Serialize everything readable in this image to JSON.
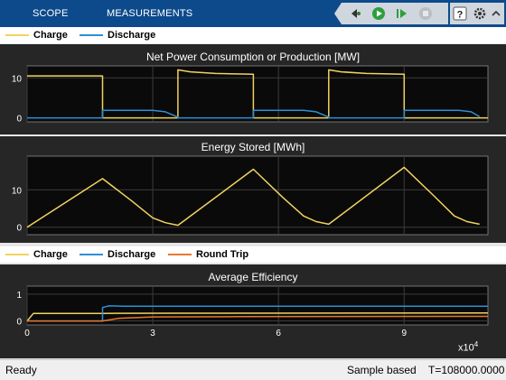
{
  "toolbar": {
    "tabs": [
      "SCOPE",
      "MEASUREMENTS"
    ]
  },
  "colors": {
    "charge": "#f2d35e",
    "discharge": "#2f8fd6",
    "round_trip": "#e8772e",
    "toolbar_bg": "#0d4a8c",
    "plot_bg": "#0a0a0a"
  },
  "legend_top": [
    "Charge",
    "Discharge"
  ],
  "legend_bottom": [
    "Charge",
    "Discharge",
    "Round Trip"
  ],
  "status": {
    "left": "Ready",
    "mode": "Sample based",
    "time": "T=108000.0000"
  },
  "axis": {
    "x_exponent_base": "x10",
    "x_exponent_power": "4"
  },
  "chart_data": [
    {
      "type": "line",
      "title": "Net Power Consumption or Production [MW]",
      "xlim": [
        0,
        11
      ],
      "ylim": [
        -1,
        13
      ],
      "yticks": [
        0,
        10
      ],
      "xticks": [
        0,
        3,
        6,
        9
      ],
      "grid": true,
      "series": [
        {
          "name": "Charge",
          "x": [
            0,
            1.8,
            1.8,
            3.6,
            3.6,
            3.9,
            4.5,
            5.4,
            5.4,
            7.2,
            7.2,
            7.5,
            8.1,
            9.0,
            9.0,
            11
          ],
          "y": [
            10.5,
            10.5,
            0,
            0,
            12,
            11.5,
            11.1,
            10.9,
            0,
            0,
            12,
            11.5,
            11.1,
            10.9,
            0,
            0
          ]
        },
        {
          "name": "Discharge",
          "x": [
            0,
            1.8,
            1.8,
            3.0,
            3.3,
            3.6,
            3.6,
            5.4,
            5.4,
            6.6,
            6.9,
            7.2,
            7.2,
            9.0,
            9.0,
            10.3,
            10.6,
            10.8
          ],
          "y": [
            0,
            0,
            1.9,
            1.9,
            1.5,
            0.2,
            0,
            0,
            1.9,
            1.9,
            1.5,
            0.2,
            0,
            0,
            1.9,
            1.9,
            1.5,
            0.3
          ]
        }
      ]
    },
    {
      "type": "line",
      "title": "Energy Stored [MWh]",
      "xlim": [
        0,
        11
      ],
      "ylim": [
        -2,
        19
      ],
      "yticks": [
        0,
        10
      ],
      "xticks": [
        0,
        3,
        6,
        9
      ],
      "grid": true,
      "series": [
        {
          "name": "Charge",
          "x": [
            0,
            1.8,
            2.5,
            3.0,
            3.3,
            3.6,
            5.4,
            6.1,
            6.6,
            6.9,
            7.2,
            9.0,
            9.7,
            10.2,
            10.5,
            10.8
          ],
          "y": [
            0,
            13,
            7,
            2.5,
            1.2,
            0.5,
            15.5,
            8,
            3,
            1.5,
            0.8,
            16,
            8.5,
            3,
            1.5,
            0.8
          ]
        }
      ]
    },
    {
      "type": "line",
      "title": "Average Efficiency",
      "xlim": [
        0,
        11
      ],
      "ylim": [
        -0.15,
        1.3
      ],
      "yticks": [
        0,
        1
      ],
      "xticks": [
        0,
        3,
        6,
        9
      ],
      "xticklabels": [
        "0",
        "3",
        "6",
        "9"
      ],
      "grid": true,
      "series": [
        {
          "name": "Charge",
          "x": [
            0,
            0.15,
            1.8,
            3.6,
            11
          ],
          "y": [
            0,
            0.28,
            0.28,
            0.29,
            0.3
          ]
        },
        {
          "name": "Discharge",
          "x": [
            0,
            1.8,
            1.8,
            1.95,
            2.3,
            4,
            11
          ],
          "y": [
            0,
            0,
            0.5,
            0.56,
            0.55,
            0.55,
            0.55
          ]
        },
        {
          "name": "Round Trip",
          "x": [
            0,
            1.8,
            2.2,
            3.0,
            5.0,
            11
          ],
          "y": [
            0,
            0,
            0.1,
            0.15,
            0.16,
            0.17
          ]
        }
      ]
    }
  ]
}
